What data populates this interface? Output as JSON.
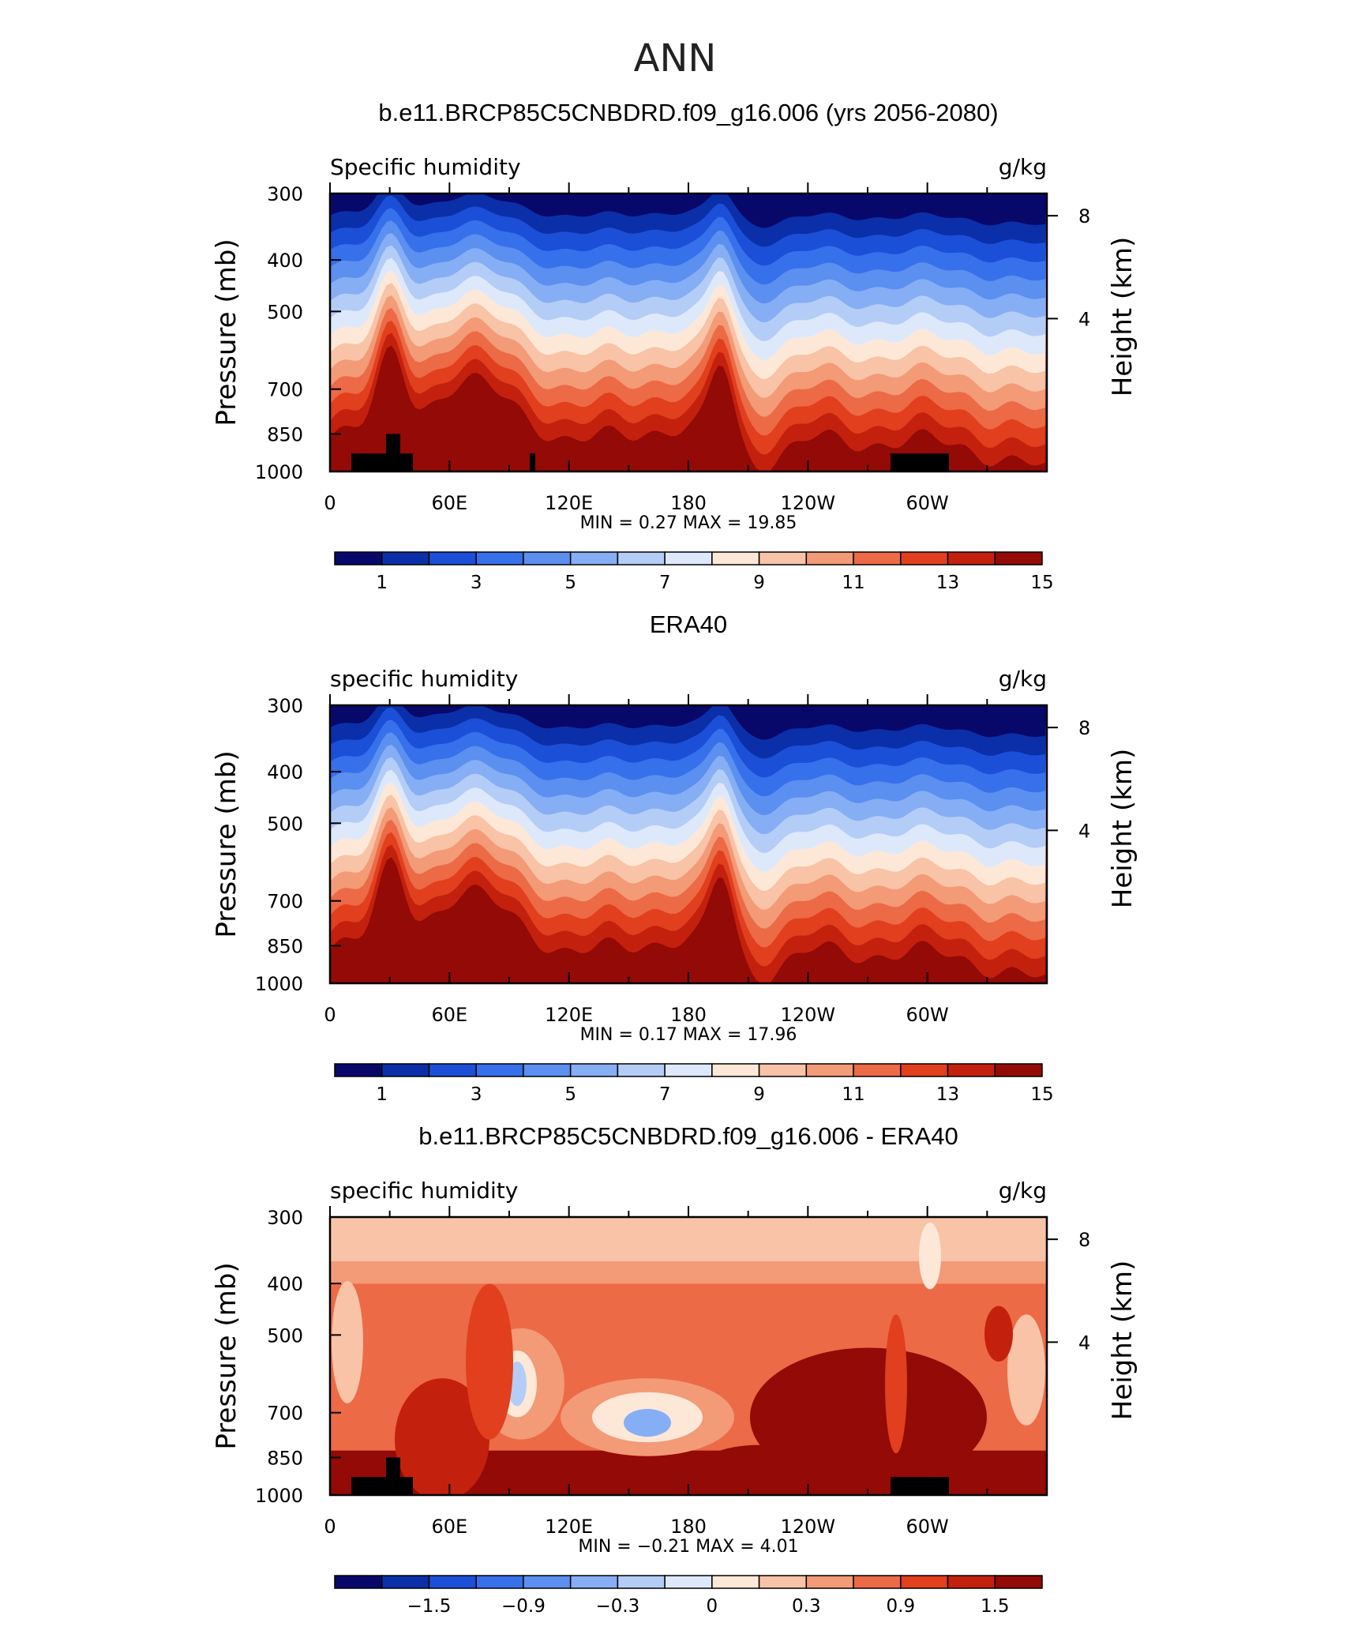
{
  "page_title": "ANN",
  "panels": [
    {
      "title": "b.e11.BRCP85C5CNBDRD.f09_g16.006 (yrs 2056-2080)",
      "left_label": "Specific humidity",
      "right_label": "g/kg",
      "stats": "MIN =    0.27   MAX =    19.85",
      "colorbar_labels": [
        "1",
        "3",
        "5",
        "7",
        "9",
        "11",
        "13",
        "15"
      ],
      "topography": true
    },
    {
      "title": "ERA40",
      "left_label": "specific humidity",
      "right_label": "g/kg",
      "stats": "MIN =    0.17   MAX =    17.96",
      "colorbar_labels": [
        "1",
        "3",
        "5",
        "7",
        "9",
        "11",
        "13",
        "15"
      ],
      "topography": false
    },
    {
      "title": "b.e11.BRCP85C5CNBDRD.f09_g16.006 - ERA40",
      "left_label": "specific humidity",
      "right_label": "g/kg",
      "stats": "MIN =   −0.21   MAX =    4.01",
      "colorbar_labels": [
        "−1.5",
        "−0.9",
        "−0.3",
        "0",
        "0.3",
        "0.9",
        "1.5"
      ],
      "topography": true
    }
  ],
  "axes": {
    "ylabel_left": "Pressure  (mb)",
    "ylabel_right": "Height  (km)",
    "pressure_ticks": [
      "300",
      "400",
      "500",
      "700",
      "850",
      "1000"
    ],
    "longitude_ticks": [
      "0",
      "60E",
      "120E",
      "180",
      "120W",
      "60W"
    ],
    "height_ticks": [
      "8",
      "4"
    ]
  },
  "colors": {
    "palette": [
      "#08086b",
      "#0b2fa8",
      "#1c4fd8",
      "#3670ea",
      "#5b8ff0",
      "#86aef4",
      "#b4cdf7",
      "#dde9fb",
      "#fde8d8",
      "#f8c3a6",
      "#f39a76",
      "#ec6a46",
      "#e13f1d",
      "#c4200e",
      "#930a06"
    ]
  },
  "chart_data": [
    {
      "type": "heatmap",
      "title": "b.e11.BRCP85C5CNBDRD.f09_g16.006 (yrs 2056-2080)",
      "xlabel": "",
      "ylabel": "Pressure  (mb)",
      "x": [
        "0",
        "60E",
        "120E",
        "180",
        "120W",
        "60W"
      ],
      "y": [
        300,
        400,
        500,
        700,
        850,
        1000
      ],
      "units": "g/kg",
      "contour_levels": [
        0,
        1,
        2,
        3,
        4,
        5,
        6,
        7,
        8,
        9,
        10,
        11,
        12,
        13,
        14,
        15
      ],
      "min": 0.27,
      "max": 19.85
    },
    {
      "type": "heatmap",
      "title": "ERA40",
      "xlabel": "",
      "ylabel": "Pressure  (mb)",
      "x": [
        "0",
        "60E",
        "120E",
        "180",
        "120W",
        "60W"
      ],
      "y": [
        300,
        400,
        500,
        700,
        850,
        1000
      ],
      "units": "g/kg",
      "contour_levels": [
        0,
        1,
        2,
        3,
        4,
        5,
        6,
        7,
        8,
        9,
        10,
        11,
        12,
        13,
        14,
        15
      ],
      "min": 0.17,
      "max": 17.96
    },
    {
      "type": "heatmap",
      "title": "b.e11.BRCP85C5CNBDRD.f09_g16.006 - ERA40",
      "xlabel": "",
      "ylabel": "Pressure  (mb)",
      "x": [
        "0",
        "60E",
        "120E",
        "180",
        "120W",
        "60W"
      ],
      "y": [
        300,
        400,
        500,
        700,
        850,
        1000
      ],
      "units": "g/kg",
      "contour_levels": [
        -1.8,
        -1.5,
        -1.2,
        -0.9,
        -0.6,
        -0.3,
        0,
        0.1,
        0.3,
        0.6,
        0.9,
        1.2,
        1.5,
        1.8
      ],
      "min": -0.21,
      "max": 4.01
    }
  ]
}
